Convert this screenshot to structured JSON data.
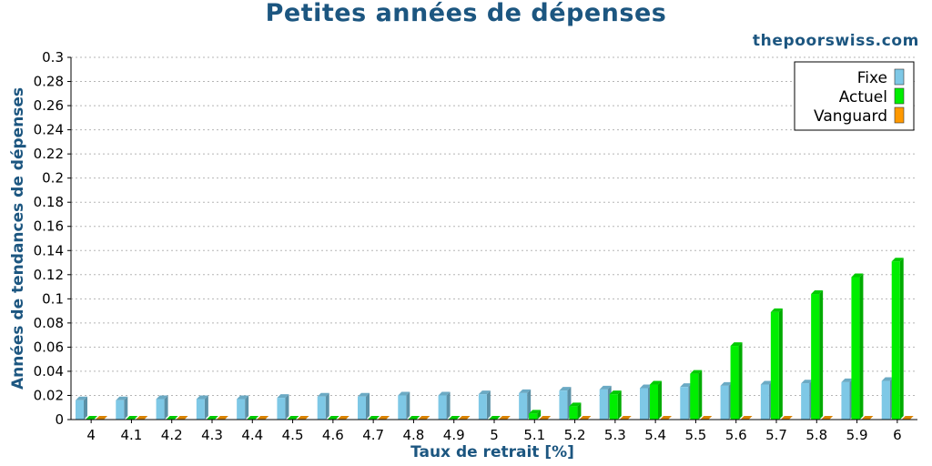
{
  "header": {
    "title": "Petites années de dépenses",
    "source": "thepoorswiss.com"
  },
  "chart_data": {
    "type": "bar",
    "title": "Petites années de dépenses",
    "xlabel": "Taux de retrait [%]",
    "ylabel": "Années de tendances de dépenses",
    "ylim": [
      0,
      0.3
    ],
    "yticks": [
      "0",
      "0.02",
      "0.04",
      "0.06",
      "0.08",
      "0.1",
      "0.12",
      "0.14",
      "0.16",
      "0.18",
      "0.2",
      "0.22",
      "0.24",
      "0.26",
      "0.28",
      "0.3"
    ],
    "categories": [
      "4",
      "4.1",
      "4.2",
      "4.3",
      "4.4",
      "4.5",
      "4.6",
      "4.7",
      "4.8",
      "4.9",
      "5",
      "5.1",
      "5.2",
      "5.3",
      "5.4",
      "5.5",
      "5.6",
      "5.7",
      "5.8",
      "5.9",
      "6"
    ],
    "grid": true,
    "legend_position": "top-right",
    "series": [
      {
        "name": "Fixe",
        "color": "#7ec8e6",
        "values": [
          0.016,
          0.016,
          0.017,
          0.017,
          0.017,
          0.018,
          0.019,
          0.019,
          0.02,
          0.02,
          0.021,
          0.022,
          0.024,
          0.025,
          0.026,
          0.027,
          0.028,
          0.029,
          0.03,
          0.031,
          0.032
        ]
      },
      {
        "name": "Actuel",
        "color": "#00ee00",
        "values": [
          0,
          0,
          0,
          0,
          0,
          0,
          0,
          0,
          0,
          0,
          0,
          0.005,
          0.011,
          0.021,
          0.029,
          0.038,
          0.061,
          0.089,
          0.104,
          0.118,
          0.131
        ]
      },
      {
        "name": "Vanguard",
        "color": "#ff9900",
        "values": [
          0,
          0,
          0,
          0,
          0,
          0,
          0,
          0,
          0,
          0,
          0,
          0,
          0,
          0,
          0,
          0,
          0,
          0,
          0,
          0,
          0
        ]
      }
    ]
  }
}
